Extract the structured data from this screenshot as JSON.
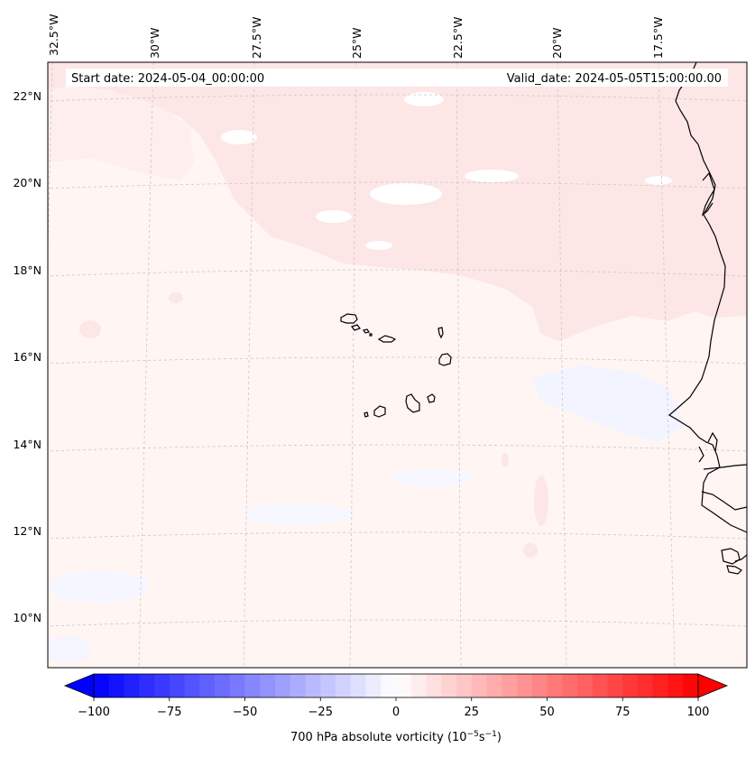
{
  "map": {
    "start_date": "Start date: 2024-05-04_00:00:00",
    "valid_date": "Valid_date: 2024-05-05T15:00:00.00",
    "longitude_labels": [
      "32.5°W",
      "30°W",
      "27.5°W",
      "25°W",
      "22.5°W",
      "20°W",
      "17.5°W"
    ],
    "latitude_labels": [
      "22°N",
      "20°N",
      "18°N",
      "16°N",
      "14°N",
      "12°N",
      "10°N"
    ],
    "field_colors": {
      "background": "#fff5f3",
      "light_red": "#fde6e6",
      "lighter_red": "#feeeee",
      "light_blue": "#f2f4ff",
      "white": "#ffffff",
      "coastline": "#000000",
      "gridline": "#c8c8c8"
    }
  },
  "colorbar": {
    "label_prefix": "700 hPa absolute vorticity (10",
    "label_exp1": "−5",
    "label_mid": "s",
    "label_exp2": "−1",
    "label_suffix": ")",
    "min": -100,
    "max": 100,
    "step": 5,
    "tick_values": [
      -100,
      -75,
      -50,
      -25,
      0,
      25,
      50,
      75,
      100
    ],
    "tick_labels": [
      "−100",
      "−75",
      "−50",
      "−25",
      "0",
      "25",
      "50",
      "75",
      "100"
    ],
    "color_min": "#0000ff",
    "color_mid": "#ffffff",
    "color_max": "#ff0000"
  }
}
